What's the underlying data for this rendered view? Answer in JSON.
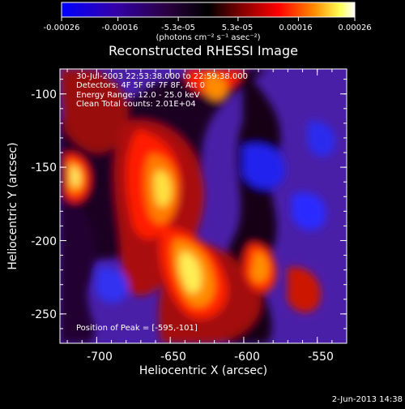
{
  "colorbar": {
    "tick_labels": [
      "-0.00026",
      "-0.00016",
      "-5.3e-05",
      "5.3e-05",
      "0.00016",
      "0.00026"
    ],
    "tick_values": [
      -0.00026,
      -0.00016,
      -5.3e-05,
      5.3e-05,
      0.00016,
      0.00026
    ],
    "range": [
      -0.00026,
      0.00026
    ],
    "unit_label": "(photons cm⁻² s⁻¹ asec⁻²)",
    "colors": [
      "#0000ff",
      "#4b0082",
      "#000000",
      "#8b0000",
      "#ff0000",
      "#ff8c00",
      "#ffff66",
      "#ffffff"
    ]
  },
  "chart_data": {
    "type": "heatmap",
    "title": "Reconstructed RHESSI Image",
    "xlabel": "Heliocentric X (arcsec)",
    "ylabel": "Heliocentric Y (arcsec)",
    "xlim": [
      -725,
      -530
    ],
    "ylim": [
      -270,
      -83
    ],
    "x_tick_labels": [
      "-700",
      "-650",
      "-600",
      "-550"
    ],
    "x_tick_values": [
      -700,
      -650,
      -600,
      -550
    ],
    "y_tick_labels": [
      "-100",
      "-150",
      "-200",
      "-250"
    ],
    "y_tick_values": [
      -100,
      -150,
      -200,
      -250
    ],
    "annotation_lines": [
      "30-Jul-2003 22:53:38.000 to 22:59:38.000",
      "Detectors: 4F 5F 6F 7F 8F, Att 0",
      "Energy Range: 12.0 - 25.0 keV",
      "Clean     Total counts: 2.01E+04"
    ],
    "peak_label": "Position of Peak = [-595,-101]",
    "peak_position": [
      -595,
      -101
    ]
  },
  "footer": {
    "timestamp": "2-Jun-2013 14:38"
  }
}
